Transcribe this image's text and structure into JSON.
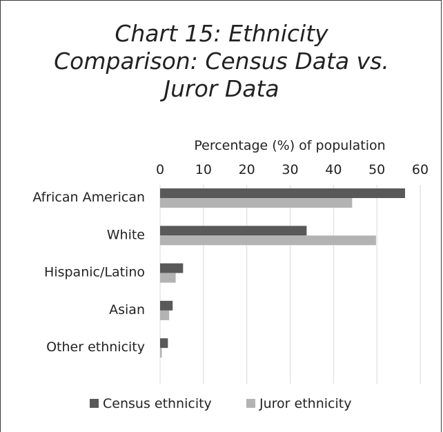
{
  "chart_data": {
    "type": "bar",
    "orientation": "horizontal",
    "title_lines": [
      "Chart 15: Ethnicity",
      "Comparison: Census Data vs.",
      "Juror Data"
    ],
    "xlabel": "Percentage (%) of population",
    "xlim": [
      0,
      60
    ],
    "xticks": [
      "0",
      "10",
      "20",
      "30",
      "40",
      "50",
      "60"
    ],
    "categories": [
      "African American",
      "White",
      "Hispanic/Latino",
      "Asian",
      "Other ethnicity"
    ],
    "series": [
      {
        "name": "Census ethnicity",
        "color": "#595959",
        "values": [
          56.5,
          33.8,
          5.3,
          2.9,
          1.8
        ]
      },
      {
        "name": "Juror ethnicity",
        "color": "#b3b3b3",
        "values": [
          44.3,
          49.8,
          3.6,
          2.1,
          0.4
        ]
      }
    ],
    "grid": true,
    "legend_position": "bottom"
  }
}
